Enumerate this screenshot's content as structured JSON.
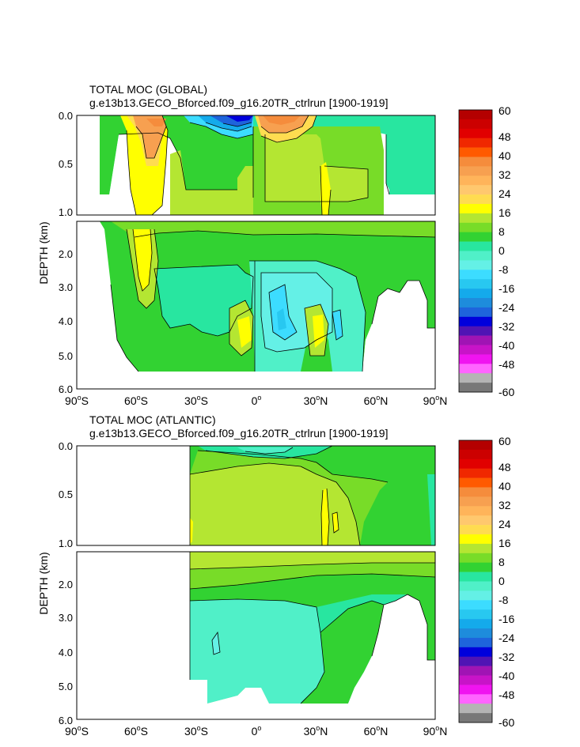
{
  "panels": [
    {
      "title": "TOTAL MOC (GLOBAL)",
      "subtitle": "g.e13b13.GECO_Bforced.f09_g16.20TR_ctrlrun [1900-1919]",
      "ylabel": "DEPTH (km)",
      "upper_yticks": [
        "0.0",
        "0.5",
        "1.0"
      ],
      "lower_yticks": [
        "2.0",
        "3.0",
        "4.0",
        "5.0",
        "6.0"
      ],
      "xticks": [
        {
          "deg": "90",
          "hemi": "S"
        },
        {
          "deg": "60",
          "hemi": "S"
        },
        {
          "deg": "30",
          "hemi": "S"
        },
        {
          "deg": "0",
          "hemi": ""
        },
        {
          "deg": "30",
          "hemi": "N"
        },
        {
          "deg": "60",
          "hemi": "N"
        },
        {
          "deg": "90",
          "hemi": "N"
        }
      ]
    },
    {
      "title": "TOTAL MOC (ATLANTIC)",
      "subtitle": "g.e13b13.GECO_Bforced.f09_g16.20TR_ctrlrun [1900-1919]",
      "ylabel": "DEPTH (km)",
      "upper_yticks": [
        "0.0",
        "0.5",
        "1.0"
      ],
      "lower_yticks": [
        "2.0",
        "3.0",
        "4.0",
        "5.0",
        "6.0"
      ],
      "xticks": [
        {
          "deg": "90",
          "hemi": "S"
        },
        {
          "deg": "60",
          "hemi": "S"
        },
        {
          "deg": "30",
          "hemi": "S"
        },
        {
          "deg": "0",
          "hemi": ""
        },
        {
          "deg": "30",
          "hemi": "N"
        },
        {
          "deg": "60",
          "hemi": "N"
        },
        {
          "deg": "90",
          "hemi": "N"
        }
      ]
    }
  ],
  "colorbar": {
    "labels": [
      "60",
      "48",
      "40",
      "32",
      "24",
      "16",
      "8",
      "0",
      "-8",
      "-16",
      "-24",
      "-32",
      "-40",
      "-48",
      "-60"
    ],
    "colors": [
      "#b40000",
      "#cc0000",
      "#e10000",
      "#f02800",
      "#ff5a00",
      "#f58c3c",
      "#f7a050",
      "#ffb45a",
      "#ffc86e",
      "#ffdc50",
      "#ffff00",
      "#b4e632",
      "#78dc28",
      "#32d232",
      "#28e6a0",
      "#50f0c8",
      "#64f0e6",
      "#3cdcff",
      "#28c8f0",
      "#14aaeb",
      "#1e8cdc",
      "#1e64dc",
      "#0000dc",
      "#5014b4",
      "#a014b4",
      "#c814c8",
      "#f014f0",
      "#ff64ff",
      "#b4b4b4",
      "#787878"
    ]
  },
  "chart_data": [
    {
      "type": "heatmap",
      "title": "TOTAL MOC (GLOBAL)",
      "subtitle": "g.e13b13.GECO_Bforced.f09_g16.20TR_ctrlrun [1900-1919]",
      "xlabel": "",
      "ylabel": "DEPTH (km)",
      "xlim": [
        -90,
        90
      ],
      "ylim": [
        6.0,
        0.0
      ],
      "y_axis_break": [
        1.0,
        1.5
      ],
      "x_tick_labels": [
        "90°S",
        "60°S",
        "30°S",
        "0°",
        "30°N",
        "60°N",
        "90°N"
      ],
      "y_tick_labels": [
        "0.0",
        "0.5",
        "1.0",
        "2.0",
        "3.0",
        "4.0",
        "5.0",
        "6.0"
      ],
      "contour_levels": [
        -60,
        -48,
        -40,
        -32,
        -24,
        -16,
        -8,
        0,
        8,
        16,
        24,
        32,
        40,
        48,
        60
      ],
      "features": [
        {
          "lat": -50,
          "depth": 0.1,
          "value": 30
        },
        {
          "lat": -12,
          "depth": 0.05,
          "value": -40
        },
        {
          "lat": 12,
          "depth": 0.05,
          "value": 30
        },
        {
          "lat": -58,
          "depth": 2.0,
          "value": 16
        },
        {
          "lat": 0,
          "depth": 0.5,
          "value": 8
        },
        {
          "lat": 15,
          "depth": 4.0,
          "value": -12
        },
        {
          "lat": -10,
          "depth": 4.2,
          "value": 12
        },
        {
          "lat": 32,
          "depth": 4.2,
          "value": 14
        },
        {
          "lat": 40,
          "depth": 4.1,
          "value": -12
        },
        {
          "lat": -40,
          "depth": 4.0,
          "value": -5
        }
      ]
    },
    {
      "type": "heatmap",
      "title": "TOTAL MOC (ATLANTIC)",
      "subtitle": "g.e13b13.GECO_Bforced.f09_g16.20TR_ctrlrun [1900-1919]",
      "xlabel": "",
      "ylabel": "DEPTH (km)",
      "xlim": [
        -90,
        90
      ],
      "ylim": [
        6.0,
        0.0
      ],
      "y_axis_break": [
        1.0,
        1.5
      ],
      "x_tick_labels": [
        "90°S",
        "60°S",
        "30°S",
        "0°",
        "30°N",
        "60°N",
        "90°N"
      ],
      "y_tick_labels": [
        "0.0",
        "0.5",
        "1.0",
        "2.0",
        "3.0",
        "4.0",
        "5.0",
        "6.0"
      ],
      "contour_levels": [
        -60,
        -48,
        -40,
        -32,
        -24,
        -16,
        -8,
        0,
        8,
        16,
        24,
        32,
        40,
        48,
        60
      ],
      "features": [
        {
          "lat": 0,
          "depth": 0.5,
          "value": 12
        },
        {
          "lat": 35,
          "depth": 0.8,
          "value": 16
        },
        {
          "lat": 0,
          "depth": 0.02,
          "value": -5
        },
        {
          "lat": -5,
          "depth": 3.8,
          "value": -6
        },
        {
          "lat": 60,
          "depth": 1.5,
          "value": 4
        }
      ]
    }
  ]
}
